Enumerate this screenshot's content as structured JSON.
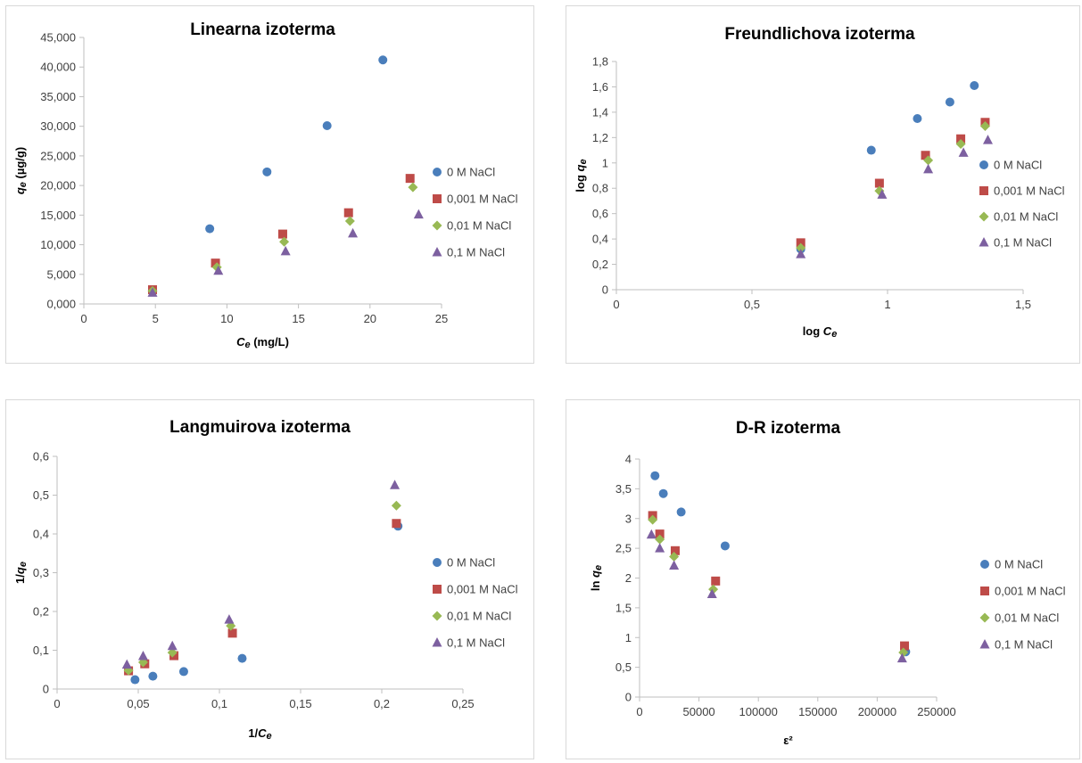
{
  "chart_data": [
    {
      "type": "scatter",
      "title": "Linearna izoterma",
      "xlabel_sym": "Ce",
      "xlabel_rest": " (mg/L)",
      "ylabel_sym": "qe",
      "ylabel_rest": " (µg/g)",
      "xlim": [
        0,
        25
      ],
      "ylim": [
        0,
        45000
      ],
      "xticks": [
        0,
        5,
        10,
        15,
        20,
        25
      ],
      "xtick_labels": [
        "0",
        "5",
        "10",
        "15",
        "20",
        "25"
      ],
      "yticks": [
        0,
        5000,
        10000,
        15000,
        20000,
        25000,
        30000,
        35000,
        40000,
        45000
      ],
      "ytick_labels": [
        "0,000",
        "5,000",
        "10,000",
        "15,000",
        "20,000",
        "25,000",
        "30,000",
        "35,000",
        "40,000",
        "45,000"
      ],
      "grid": false,
      "legend": "right",
      "series": [
        {
          "name": "0 M NaCl",
          "marker": "circle",
          "color": "#4a7ebb",
          "x": [
            4.8,
            8.8,
            12.8,
            17.0,
            20.9
          ],
          "y": [
            2100,
            12700,
            22300,
            30100,
            41200
          ]
        },
        {
          "name": "0,001 M NaCl",
          "marker": "square",
          "color": "#be4b48",
          "x": [
            4.8,
            9.2,
            13.9,
            18.5,
            22.8
          ],
          "y": [
            2400,
            6900,
            11800,
            15400,
            21200
          ]
        },
        {
          "name": "0,01 M NaCl",
          "marker": "diamond",
          "color": "#98b954",
          "x": [
            4.8,
            9.3,
            14.0,
            18.6,
            23.0
          ],
          "y": [
            2200,
            6200,
            10500,
            14000,
            19700
          ]
        },
        {
          "name": "0,1 M NaCl",
          "marker": "triangle",
          "color": "#7d60a0",
          "x": [
            4.8,
            9.4,
            14.1,
            18.8,
            23.4
          ],
          "y": [
            1900,
            5600,
            8900,
            11900,
            15100
          ]
        }
      ]
    },
    {
      "type": "scatter",
      "title": "Freundlichova izoterma",
      "xlabel_pre": "log ",
      "xlabel_sym": "Ce",
      "ylabel_pre": "log ",
      "ylabel_sym": "qe",
      "xlim": [
        0,
        1.5
      ],
      "ylim": [
        0,
        1.8
      ],
      "xticks": [
        0,
        0.5,
        1,
        1.5
      ],
      "xtick_labels": [
        "0",
        "0,5",
        "1",
        "1,5"
      ],
      "yticks": [
        0,
        0.2,
        0.4,
        0.6,
        0.8,
        1.0,
        1.2,
        1.4,
        1.6,
        1.8
      ],
      "ytick_labels": [
        "0",
        "0,2",
        "0,4",
        "0,6",
        "0,8",
        "1",
        "1,2",
        "1,4",
        "1,6",
        "1,8"
      ],
      "grid": false,
      "legend": "right",
      "series": [
        {
          "name": "0 M NaCl",
          "marker": "circle",
          "color": "#4a7ebb",
          "x": [
            0.68,
            0.94,
            1.11,
            1.23,
            1.32
          ],
          "y": [
            0.32,
            1.1,
            1.35,
            1.48,
            1.61
          ]
        },
        {
          "name": "0,001 M NaCl",
          "marker": "square",
          "color": "#be4b48",
          "x": [
            0.68,
            0.97,
            1.14,
            1.27,
            1.36
          ],
          "y": [
            0.37,
            0.84,
            1.06,
            1.19,
            1.32
          ]
        },
        {
          "name": "0,01 M NaCl",
          "marker": "diamond",
          "color": "#98b954",
          "x": [
            0.68,
            0.97,
            1.15,
            1.27,
            1.36
          ],
          "y": [
            0.33,
            0.78,
            1.02,
            1.15,
            1.29
          ]
        },
        {
          "name": "0,1 M NaCl",
          "marker": "triangle",
          "color": "#7d60a0",
          "x": [
            0.68,
            0.98,
            1.15,
            1.28,
            1.37
          ],
          "y": [
            0.28,
            0.75,
            0.95,
            1.08,
            1.18
          ]
        }
      ]
    },
    {
      "type": "scatter",
      "title": "Langmuirova izoterma",
      "xlabel_pre": "1/",
      "xlabel_sym": "Ce",
      "ylabel_pre": "1/",
      "ylabel_sym": "qe",
      "xlim": [
        0,
        0.25
      ],
      "ylim": [
        0,
        0.6
      ],
      "xticks": [
        0,
        0.05,
        0.1,
        0.15,
        0.2,
        0.25
      ],
      "xtick_labels": [
        "0",
        "0,05",
        "0,1",
        "0,15",
        "0,2",
        "0,25"
      ],
      "yticks": [
        0,
        0.1,
        0.2,
        0.3,
        0.4,
        0.5,
        0.6
      ],
      "ytick_labels": [
        "0",
        "0,1",
        "0,2",
        "0,3",
        "0,4",
        "0,5",
        "0,6"
      ],
      "grid": false,
      "legend": "right",
      "series": [
        {
          "name": "0 M NaCl",
          "marker": "circle",
          "color": "#4a7ebb",
          "x": [
            0.048,
            0.059,
            0.078,
            0.114,
            0.21
          ],
          "y": [
            0.024,
            0.033,
            0.045,
            0.079,
            0.42
          ]
        },
        {
          "name": "0,001 M NaCl",
          "marker": "square",
          "color": "#be4b48",
          "x": [
            0.044,
            0.054,
            0.072,
            0.108,
            0.209
          ],
          "y": [
            0.047,
            0.065,
            0.086,
            0.144,
            0.427
          ]
        },
        {
          "name": "0,01 M NaCl",
          "marker": "diamond",
          "color": "#98b954",
          "x": [
            0.044,
            0.053,
            0.071,
            0.107,
            0.209
          ],
          "y": [
            0.048,
            0.069,
            0.094,
            0.163,
            0.473
          ]
        },
        {
          "name": "0,1 M NaCl",
          "marker": "triangle",
          "color": "#7d60a0",
          "x": [
            0.043,
            0.053,
            0.071,
            0.106,
            0.208
          ],
          "y": [
            0.063,
            0.085,
            0.111,
            0.179,
            0.526
          ]
        }
      ]
    },
    {
      "type": "scatter",
      "title": "D-R izoterma",
      "xlabel_text": "ε²",
      "ylabel_pre": "ln ",
      "ylabel_sym": "qe",
      "xlim": [
        0,
        250000
      ],
      "ylim": [
        0,
        4
      ],
      "xticks": [
        0,
        50000,
        100000,
        150000,
        200000,
        250000
      ],
      "xtick_labels": [
        "0",
        "50000",
        "100000",
        "150000",
        "200000",
        "250000"
      ],
      "yticks": [
        0,
        0.5,
        1,
        1.5,
        2,
        2.5,
        3,
        3.5,
        4
      ],
      "ytick_labels": [
        "0",
        "0,5",
        "1",
        "1,5",
        "2",
        "2,5",
        "3",
        "3,5",
        "4"
      ],
      "grid": false,
      "legend": "right",
      "series": [
        {
          "name": "0 M NaCl",
          "marker": "circle",
          "color": "#4a7ebb",
          "x": [
            13000,
            20000,
            35000,
            72000,
            224000
          ],
          "y": [
            3.72,
            3.42,
            3.11,
            2.54,
            0.76
          ]
        },
        {
          "name": "0,001 M NaCl",
          "marker": "square",
          "color": "#be4b48",
          "x": [
            11000,
            17000,
            30000,
            64000,
            223000
          ],
          "y": [
            3.05,
            2.74,
            2.46,
            1.95,
            0.86
          ]
        },
        {
          "name": "0,01 M NaCl",
          "marker": "diamond",
          "color": "#98b954",
          "x": [
            11000,
            17000,
            29000,
            62000,
            222000
          ],
          "y": [
            2.98,
            2.65,
            2.36,
            1.81,
            0.75
          ]
        },
        {
          "name": "0,1 M NaCl",
          "marker": "triangle",
          "color": "#7d60a0",
          "x": [
            10000,
            17000,
            29000,
            61000,
            221000
          ],
          "y": [
            2.73,
            2.5,
            2.21,
            1.73,
            0.65
          ]
        }
      ]
    }
  ]
}
